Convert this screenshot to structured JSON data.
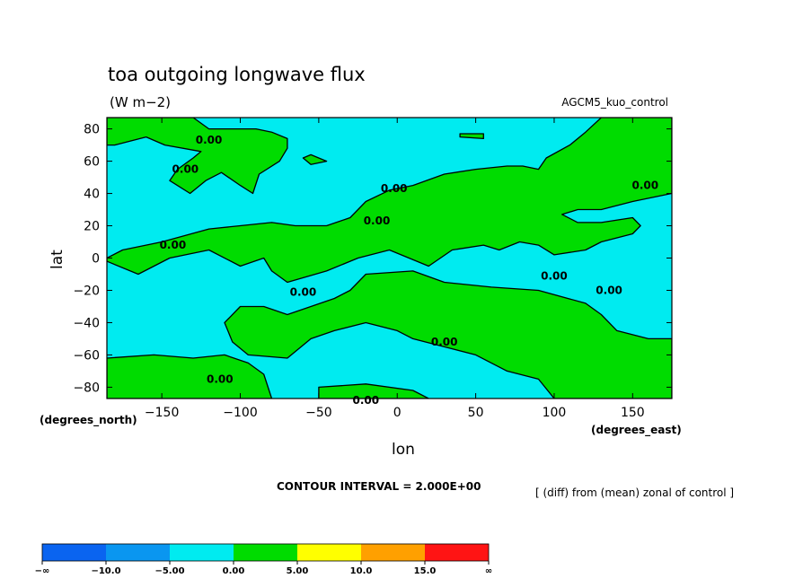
{
  "chart_data": {
    "type": "heatmap",
    "title": "toa outgoing longwave flux",
    "units": "(W m−2)",
    "model": "AGCM5_kuo_control",
    "xlabel": "lon",
    "ylabel": "lat",
    "x_units": "(degrees_east)",
    "y_units": "(degrees_north)",
    "xlim": [
      -185,
      175
    ],
    "ylim": [
      -87,
      87
    ],
    "x_ticks": [
      "−150",
      "−100",
      "−50",
      "0",
      "50",
      "100",
      "150"
    ],
    "x_tick_values": [
      -150,
      -100,
      -50,
      0,
      50,
      100,
      150
    ],
    "y_ticks": [
      "80",
      "60",
      "40",
      "20",
      "0",
      "−20",
      "−40",
      "−60",
      "−80"
    ],
    "y_tick_values": [
      80,
      60,
      40,
      20,
      0,
      -20,
      -40,
      -60,
      -80
    ],
    "contour_interval_text": "CONTOUR INTERVAL = 2.000E+00",
    "description": "[ (diff) from (mean) zonal of control ]",
    "contour_label": "0.00",
    "contour_label_positions": [
      {
        "lon": -120,
        "lat": 73
      },
      {
        "lon": -135,
        "lat": 55
      },
      {
        "lon": -143,
        "lat": 8
      },
      {
        "lon": -113,
        "lat": -75
      },
      {
        "lon": -60,
        "lat": -21
      },
      {
        "lon": -13,
        "lat": 23
      },
      {
        "lon": -2,
        "lat": 43
      },
      {
        "lon": 30,
        "lat": -52
      },
      {
        "lon": -20,
        "lat": -88
      },
      {
        "lon": 100,
        "lat": -11
      },
      {
        "lon": 135,
        "lat": -20
      },
      {
        "lon": 158,
        "lat": 45
      }
    ],
    "positive_regions": [
      [
        [
          -185,
          87
        ],
        [
          -130,
          87
        ],
        [
          -120,
          80
        ],
        [
          -90,
          80
        ],
        [
          -80,
          78
        ],
        [
          -70,
          74
        ],
        [
          -70,
          68
        ],
        [
          -75,
          60
        ],
        [
          -88,
          52
        ],
        [
          -92,
          40
        ],
        [
          -100,
          45
        ],
        [
          -112,
          53
        ],
        [
          -122,
          48
        ],
        [
          -132,
          40
        ],
        [
          -145,
          48
        ],
        [
          -140,
          55
        ],
        [
          -130,
          62
        ],
        [
          -125,
          66
        ],
        [
          -148,
          70
        ],
        [
          -160,
          75
        ],
        [
          -180,
          70
        ],
        [
          -185,
          70
        ]
      ],
      [
        [
          -185,
          0
        ],
        [
          -175,
          5
        ],
        [
          -150,
          10
        ],
        [
          -120,
          18
        ],
        [
          -100,
          20
        ],
        [
          -80,
          22
        ],
        [
          -65,
          20
        ],
        [
          -45,
          20
        ],
        [
          -30,
          25
        ],
        [
          -20,
          35
        ],
        [
          -5,
          42
        ],
        [
          10,
          45
        ],
        [
          30,
          52
        ],
        [
          50,
          55
        ],
        [
          70,
          57
        ],
        [
          80,
          57
        ],
        [
          90,
          55
        ],
        [
          95,
          62
        ],
        [
          110,
          70
        ],
        [
          120,
          78
        ],
        [
          130,
          87
        ],
        [
          175,
          87
        ],
        [
          175,
          40
        ],
        [
          150,
          35
        ],
        [
          130,
          30
        ],
        [
          115,
          30
        ],
        [
          105,
          27
        ],
        [
          115,
          22
        ],
        [
          130,
          22
        ],
        [
          150,
          25
        ],
        [
          155,
          20
        ],
        [
          150,
          15
        ],
        [
          130,
          10
        ],
        [
          120,
          5
        ],
        [
          100,
          2
        ],
        [
          90,
          8
        ],
        [
          78,
          10
        ],
        [
          65,
          5
        ],
        [
          55,
          8
        ],
        [
          35,
          5
        ],
        [
          20,
          -5
        ],
        [
          -5,
          5
        ],
        [
          -25,
          0
        ],
        [
          -45,
          -8
        ],
        [
          -70,
          -15
        ],
        [
          -80,
          -8
        ],
        [
          -85,
          0
        ],
        [
          -100,
          -5
        ],
        [
          -120,
          5
        ],
        [
          -145,
          0
        ],
        [
          -165,
          -10
        ],
        [
          -185,
          -2
        ]
      ],
      [
        [
          -110,
          -40
        ],
        [
          -100,
          -30
        ],
        [
          -85,
          -30
        ],
        [
          -70,
          -35
        ],
        [
          -55,
          -30
        ],
        [
          -40,
          -25
        ],
        [
          -30,
          -20
        ],
        [
          -20,
          -10
        ],
        [
          10,
          -8
        ],
        [
          30,
          -15
        ],
        [
          60,
          -18
        ],
        [
          90,
          -20
        ],
        [
          120,
          -28
        ],
        [
          130,
          -35
        ],
        [
          140,
          -45
        ],
        [
          160,
          -50
        ],
        [
          175,
          -50
        ],
        [
          175,
          -87
        ],
        [
          100,
          -87
        ],
        [
          90,
          -75
        ],
        [
          70,
          -70
        ],
        [
          50,
          -60
        ],
        [
          30,
          -55
        ],
        [
          10,
          -50
        ],
        [
          0,
          -45
        ],
        [
          -20,
          -40
        ],
        [
          -40,
          -45
        ],
        [
          -55,
          -50
        ],
        [
          -70,
          -62
        ],
        [
          -95,
          -60
        ],
        [
          -105,
          -52
        ]
      ],
      [
        [
          -185,
          -62
        ],
        [
          -155,
          -60
        ],
        [
          -130,
          -62
        ],
        [
          -110,
          -60
        ],
        [
          -95,
          -65
        ],
        [
          -85,
          -72
        ],
        [
          -80,
          -87
        ],
        [
          -185,
          -87
        ]
      ],
      [
        [
          -50,
          -80
        ],
        [
          -20,
          -78
        ],
        [
          10,
          -82
        ],
        [
          20,
          -87
        ],
        [
          -50,
          -87
        ]
      ],
      [
        [
          -55,
          58
        ],
        [
          -45,
          60
        ],
        [
          -55,
          64
        ],
        [
          -60,
          62
        ]
      ],
      [
        [
          40,
          75
        ],
        [
          55,
          74
        ],
        [
          55,
          77
        ],
        [
          40,
          77
        ]
      ]
    ],
    "legend": {
      "labels": [
        "−∞",
        "−10.0",
        "−5.00",
        "0.00",
        "5.00",
        "10.0",
        "15.0",
        "∞"
      ],
      "colors": [
        "#0a64f0",
        "#0a96f0",
        "#00ebf0",
        "#00dc00",
        "#ffff00",
        "#ffa000",
        "#ff1414"
      ]
    },
    "colors": {
      "negative": "#00ebf0",
      "positive": "#00dc00"
    },
    "grid": false
  }
}
